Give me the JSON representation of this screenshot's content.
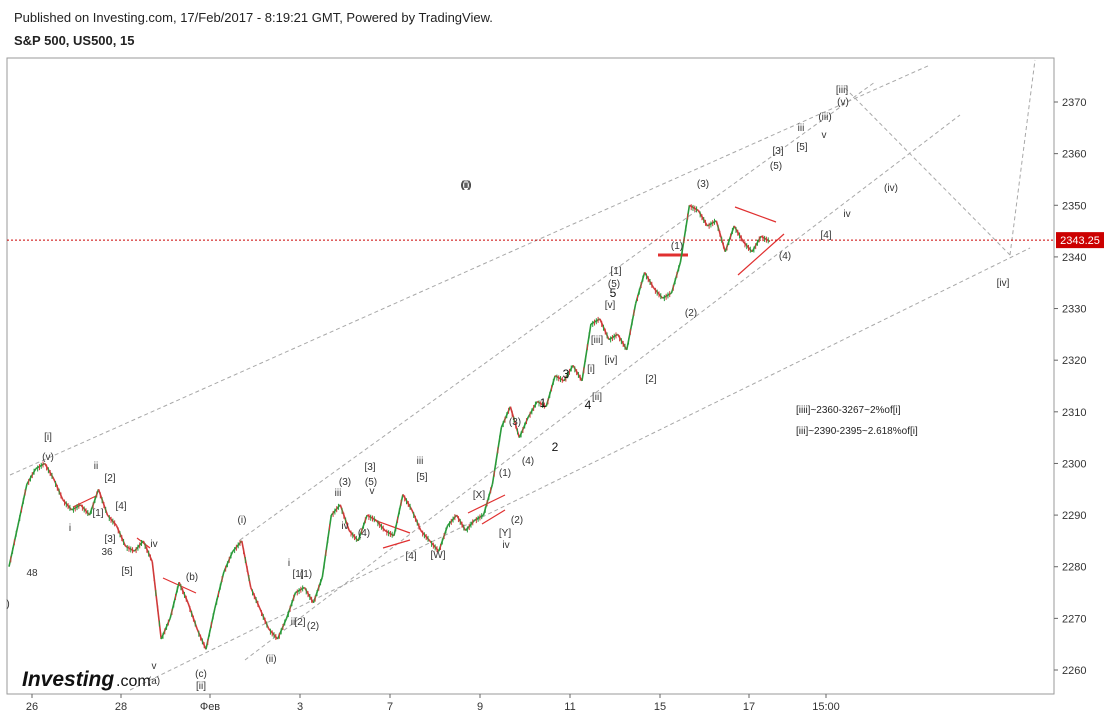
{
  "header": {
    "published": "Published on Investing.com, 17/Feb/2017 - 8:19:21 GMT, Powered by TradingView.",
    "title": "S&P 500, US500, 15"
  },
  "logo": {
    "name": "Investing",
    "suffix": ".com"
  },
  "chart_data": {
    "type": "line",
    "title": "S&P 500, US500, 15",
    "ylim": [
      2255,
      2378
    ],
    "grid": false,
    "y_ticks": [
      2260,
      2270,
      2280,
      2290,
      2300,
      2310,
      2320,
      2330,
      2340,
      2350,
      2360,
      2370
    ],
    "x_ticks": [
      "26",
      "28",
      "Фев",
      "3",
      "7",
      "9",
      "11",
      "15",
      "17",
      "15:00"
    ],
    "current_price": {
      "value": 2343.25,
      "label": "2343.25",
      "color": "#cc0000"
    },
    "series": [
      {
        "name": "price",
        "values": [
          2280,
          2288,
          2296,
          2299,
          2300,
          2297,
          2293,
          2291,
          2292,
          2290,
          2295,
          2290,
          2288,
          2284,
          2283,
          2285,
          2281,
          2266,
          2270,
          2277,
          2273,
          2268,
          2264,
          2272,
          2279,
          2283,
          2285,
          2276,
          2272,
          2268,
          2266,
          2270,
          2275,
          2276,
          2273,
          2278,
          2290,
          2292,
          2287,
          2285,
          2290,
          2289,
          2287,
          2286,
          2294,
          2291,
          2287,
          2285,
          2283,
          2288,
          2290,
          2287,
          2289,
          2290,
          2296,
          2307,
          2311,
          2305,
          2309,
          2312,
          2311,
          2317,
          2316,
          2319,
          2316,
          2327,
          2328,
          2324,
          2325,
          2322,
          2331,
          2337,
          2334,
          2332,
          2333,
          2339,
          2350,
          2349,
          2346,
          2347,
          2341,
          2346,
          2343,
          2341,
          2344,
          2343
        ]
      }
    ],
    "wave_labels": [
      "[i]",
      "(v)",
      "ii",
      "[2]",
      "[1]",
      "[4]",
      "i",
      "[3]",
      "36",
      "[5]",
      "48",
      "iv",
      "v",
      "(a)",
      "(b)",
      "(c)",
      "[ii]",
      "(i)",
      "(ii)",
      "i",
      "[1]",
      "(1)",
      "ii",
      "[2]",
      "(2)",
      "(3)",
      "iii",
      "iv",
      "[3]",
      "(5)",
      "v",
      "(4)",
      "iii",
      "[5]",
      "[4]",
      "[W]",
      "[X]",
      "[Y]",
      "(2)",
      "iv",
      "(1)",
      "(3)",
      "(4)",
      "1",
      "2",
      "3",
      "4",
      "[i]",
      "[ii]",
      "[iii]",
      "[iv]",
      "[v]",
      "(5)",
      "5",
      "[1]",
      "[2]",
      "(1)",
      "(2)",
      "(3)",
      "(4)",
      "[4]",
      "iv",
      "(iv)",
      "(5)",
      "[5]",
      "[3]",
      "iii",
      "v",
      "(iii)",
      "(v)",
      "[iii]",
      "[iv]",
      "(i)",
      "(ii)",
      ")"
    ],
    "annotations": [
      "[iiii]~2360-3267~2%of[i]",
      "[iii]~2390-2395~2.618%of[i]"
    ]
  }
}
